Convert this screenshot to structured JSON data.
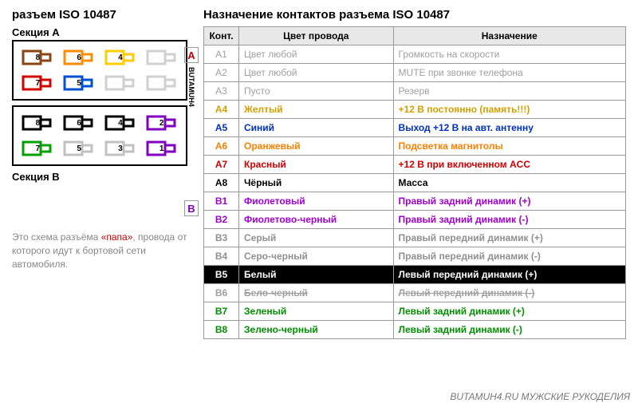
{
  "title_left": "разъем ISO 10487",
  "title_right": "Назначение контактов разъема ISO 10487",
  "section_a_label": "Секция A",
  "section_b_label": "Секция B",
  "side_text": "BUTAMUH4",
  "note_pre": "Это схема разъёма ",
  "note_red": "«папа»",
  "note_post": ", провода от которого идут к бортовой сети автомобиля.",
  "watermark": "BUTAMUH4.RU   МУЖСКИЕ РУКОДЕЛИЯ",
  "headers": {
    "kont": "Конт.",
    "color": "Цвет провода",
    "purpose": "Назначение"
  },
  "section_markers": [
    {
      "label": "A",
      "row_index": 0,
      "color": "#c00000"
    },
    {
      "label": "B",
      "row_index": 8,
      "color": "#8000c0"
    }
  ],
  "connector_a": {
    "top": [
      {
        "n": "8",
        "c": "#8b4513"
      },
      {
        "n": "6",
        "c": "#ff8c00"
      },
      {
        "n": "4",
        "c": "#ffcc00"
      },
      {
        "n": "",
        "c": "#d0d0d0"
      }
    ],
    "bottom": [
      {
        "n": "7",
        "c": "#d00000"
      },
      {
        "n": "5",
        "c": "#0050d0"
      },
      {
        "n": "",
        "c": "#d0d0d0"
      },
      {
        "n": "",
        "c": "#d0d0d0"
      }
    ]
  },
  "connector_b": {
    "top": [
      {
        "n": "8",
        "c": "#000000"
      },
      {
        "n": "6",
        "c": "#000000"
      },
      {
        "n": "4",
        "c": "#000000"
      },
      {
        "n": "2",
        "c": "#8000c0"
      }
    ],
    "bottom": [
      {
        "n": "7",
        "c": "#00a000"
      },
      {
        "n": "5",
        "c": "#c0c0c0"
      },
      {
        "n": "3",
        "c": "#c0c0c0"
      },
      {
        "n": "1",
        "c": "#8000c0"
      }
    ]
  },
  "rows": [
    {
      "kont": "A1",
      "color": "Цвет любой",
      "purpose": "Громкость на скорости",
      "text_color": "#a0a0a0",
      "bg": "#ffffff"
    },
    {
      "kont": "A2",
      "color": "Цвет любой",
      "purpose": "MUTE при звонке телефона",
      "text_color": "#a0a0a0",
      "bg": "#ffffff"
    },
    {
      "kont": "A3",
      "color": "Пусто",
      "purpose": "Резерв",
      "text_color": "#a0a0a0",
      "bg": "#ffffff"
    },
    {
      "kont": "A4",
      "color": "Желтый",
      "purpose": "+12 В постоянно (память!!!)",
      "text_color": "#d4a000",
      "bg": "#ffffff",
      "bold": true
    },
    {
      "kont": "A5",
      "color": "Синий",
      "purpose": "Выход +12 В на авт. антенну",
      "text_color": "#0030c0",
      "bg": "#ffffff",
      "bold": true
    },
    {
      "kont": "A6",
      "color": "Оранжевый",
      "purpose": "Подсветка магнитолы",
      "text_color": "#ff8000",
      "bg": "#ffffff",
      "bold": true
    },
    {
      "kont": "A7",
      "color": "Красный",
      "purpose": "+12 В при включенном ACC",
      "text_color": "#d00000",
      "bg": "#ffffff",
      "bold": true
    },
    {
      "kont": "A8",
      "color": "Чёрный",
      "purpose": "Масса",
      "text_color": "#000000",
      "bg": "#ffffff",
      "bold": true
    },
    {
      "kont": "B1",
      "color": "Фиолетовый",
      "purpose": "Правый задний динамик (+)",
      "text_color": "#a000d0",
      "bg": "#ffffff",
      "bold": true
    },
    {
      "kont": "B2",
      "color": "Фиолетово-черный",
      "purpose": "Правый задний динамик (-)",
      "text_color": "#a000d0",
      "bg": "#ffffff",
      "bold": true
    },
    {
      "kont": "B3",
      "color": "Серый",
      "purpose": "Правый передний динамик (+)",
      "text_color": "#909090",
      "bg": "#ffffff",
      "bold": true
    },
    {
      "kont": "B4",
      "color": "Серо-черный",
      "purpose": "Правый передний динамик (-)",
      "text_color": "#909090",
      "bg": "#ffffff",
      "bold": true
    },
    {
      "kont": "B5",
      "color": "Белый",
      "purpose": "Левый передний динамик (+)",
      "text_color": "#ffffff",
      "bg": "#000000",
      "bold": true
    },
    {
      "kont": "B6",
      "color": "Бело-черный",
      "purpose": "Левый передний динамик (-)",
      "text_color": "#a0a0a0",
      "bg": "#ffffff",
      "bold": true,
      "strike": true
    },
    {
      "kont": "B7",
      "color": "Зеленый",
      "purpose": "Левый задний динамик (+)",
      "text_color": "#009000",
      "bg": "#ffffff",
      "bold": true
    },
    {
      "kont": "B8",
      "color": "Зелено-черный",
      "purpose": "Левый задний динамик (-)",
      "text_color": "#009000",
      "bg": "#ffffff",
      "bold": true
    }
  ]
}
